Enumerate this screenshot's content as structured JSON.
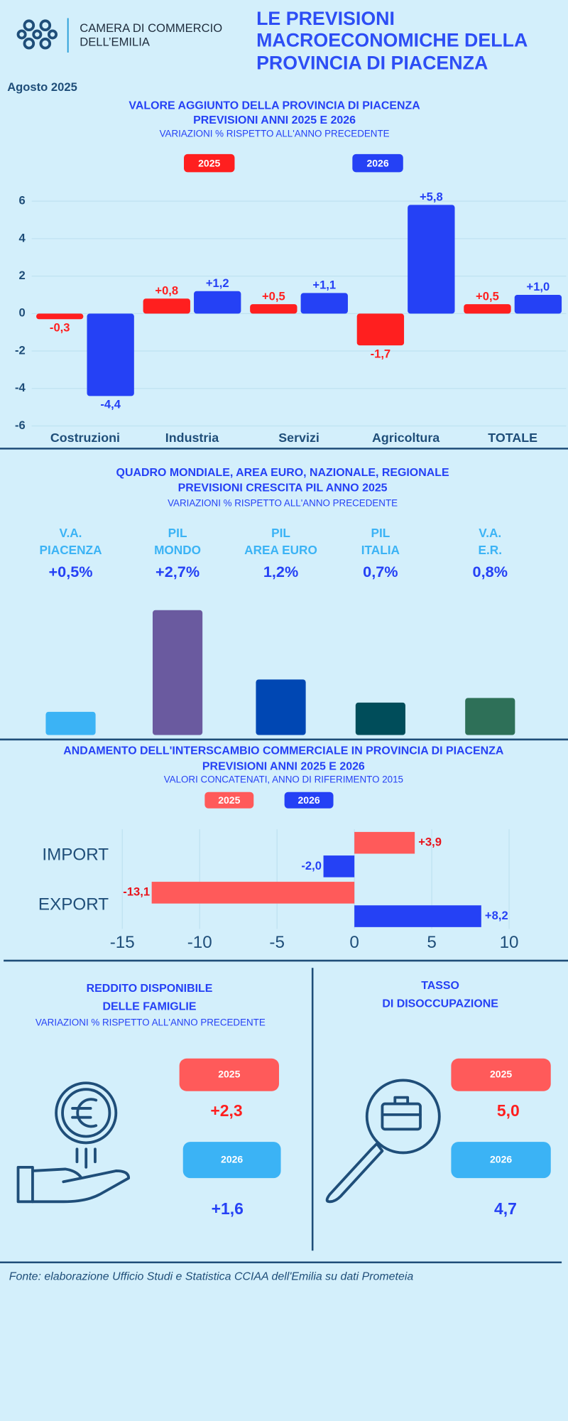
{
  "header": {
    "logo": [
      "CAMERA DI COMMERCIO",
      "DELL’EMILIA"
    ],
    "title": [
      "LE PREVISIONI",
      "MACROECONOMICHE DELLA",
      "PROVINCIA DI PIACENZA"
    ],
    "date": "Agosto 2025"
  },
  "chart_data": [
    {
      "type": "bar",
      "title": [
        "VALORE AGGIUNTO DELLA PROVINCIA DI PIACENZA",
        "PREVISIONI ANNI 2025 E 2026"
      ],
      "subtitle": "VARIAZIONI % RISPETTO ALL'ANNO PRECEDENTE",
      "categories": [
        "Costruzioni",
        "Industria",
        "Servizi",
        "Agricoltura",
        "TOTALE"
      ],
      "series": [
        {
          "name": "2025",
          "color": "#ff1f1f",
          "values": [
            -0.3,
            0.8,
            0.5,
            -1.7,
            0.5
          ],
          "value_labels": [
            "-0,3",
            "+0,8",
            "+0,5",
            "-1,7",
            "+0,5"
          ]
        },
        {
          "name": "2026",
          "color": "#2541f5",
          "values": [
            -4.4,
            1.2,
            1.1,
            5.8,
            1.0
          ],
          "value_labels": [
            "-4,4",
            "+1,2",
            "+1,1",
            "+5,8",
            "+1,0"
          ]
        }
      ],
      "ylim": [
        -6,
        6
      ],
      "yticks": [
        -6,
        -4,
        -2,
        0,
        2,
        4,
        6
      ],
      "grid": true
    },
    {
      "type": "kpi_bar",
      "title": [
        "QUADRO MONDIALE, AREA EURO, NAZIONALE, REGIONALE",
        "PREVISIONI CRESCITA PIL ANNO 2025"
      ],
      "subtitle": "VARIAZIONI % RISPETTO ALL'ANNO PRECEDENTE",
      "categories": [
        [
          "V.A.",
          "PIACENZA"
        ],
        [
          "PIL",
          "MONDO"
        ],
        [
          "PIL",
          "AREA EURO"
        ],
        [
          "PIL",
          "ITALIA"
        ],
        [
          "V.A.",
          "E.R."
        ]
      ],
      "values": [
        0.5,
        2.7,
        1.2,
        0.7,
        0.8
      ],
      "value_labels": [
        "+0,5%",
        "+2,7%",
        "1,2%",
        "0,7%",
        "0,8%"
      ],
      "colors": [
        "#3bb3f5",
        "#6a5a9f",
        "#0047b3",
        "#004d5a",
        "#2e7058"
      ]
    },
    {
      "type": "hbar",
      "title": [
        "ANDAMENTO DELL'INTERSCAMBIO COMMERCIALE IN PROVINCIA DI PIACENZA",
        "PREVISIONI ANNI  2025 E 2026"
      ],
      "subtitle": "VALORI CONCATENATI, ANNO DI RIFERIMENTO 2015",
      "categories": [
        "IMPORT",
        "EXPORT"
      ],
      "series": [
        {
          "name": "2025",
          "color": "#ff5a5a",
          "values": [
            3.9,
            -13.1
          ],
          "value_labels": [
            "+3,9",
            "-13,1"
          ]
        },
        {
          "name": "2026",
          "color": "#2541f5",
          "values": [
            -2.0,
            8.2
          ],
          "value_labels": [
            "-2,0",
            "+8,2"
          ]
        }
      ],
      "xlim": [
        -15,
        10
      ],
      "xticks": [
        -15,
        -10,
        -5,
        0,
        5,
        10
      ],
      "grid": true
    }
  ],
  "income": {
    "title": [
      "REDDITO DISPONIBILE",
      "DELLE FAMIGLIE"
    ],
    "subtitle": "VARIAZIONI % RISPETTO ALL'ANNO PRECEDENTE",
    "items": [
      {
        "year": "2025",
        "value": "+2,3"
      },
      {
        "year": "2026",
        "value": "+1,6"
      }
    ]
  },
  "unemployment": {
    "title": [
      "TASSO",
      "DI DISOCCUPAZIONE"
    ],
    "items": [
      {
        "year": "2025",
        "value": "5,0"
      },
      {
        "year": "2026",
        "value": "4,7"
      }
    ]
  },
  "footer": "Fonte: elaborazione Ufficio Studi e Statistica CCIAA dell'Emilia su dati Prometeia"
}
